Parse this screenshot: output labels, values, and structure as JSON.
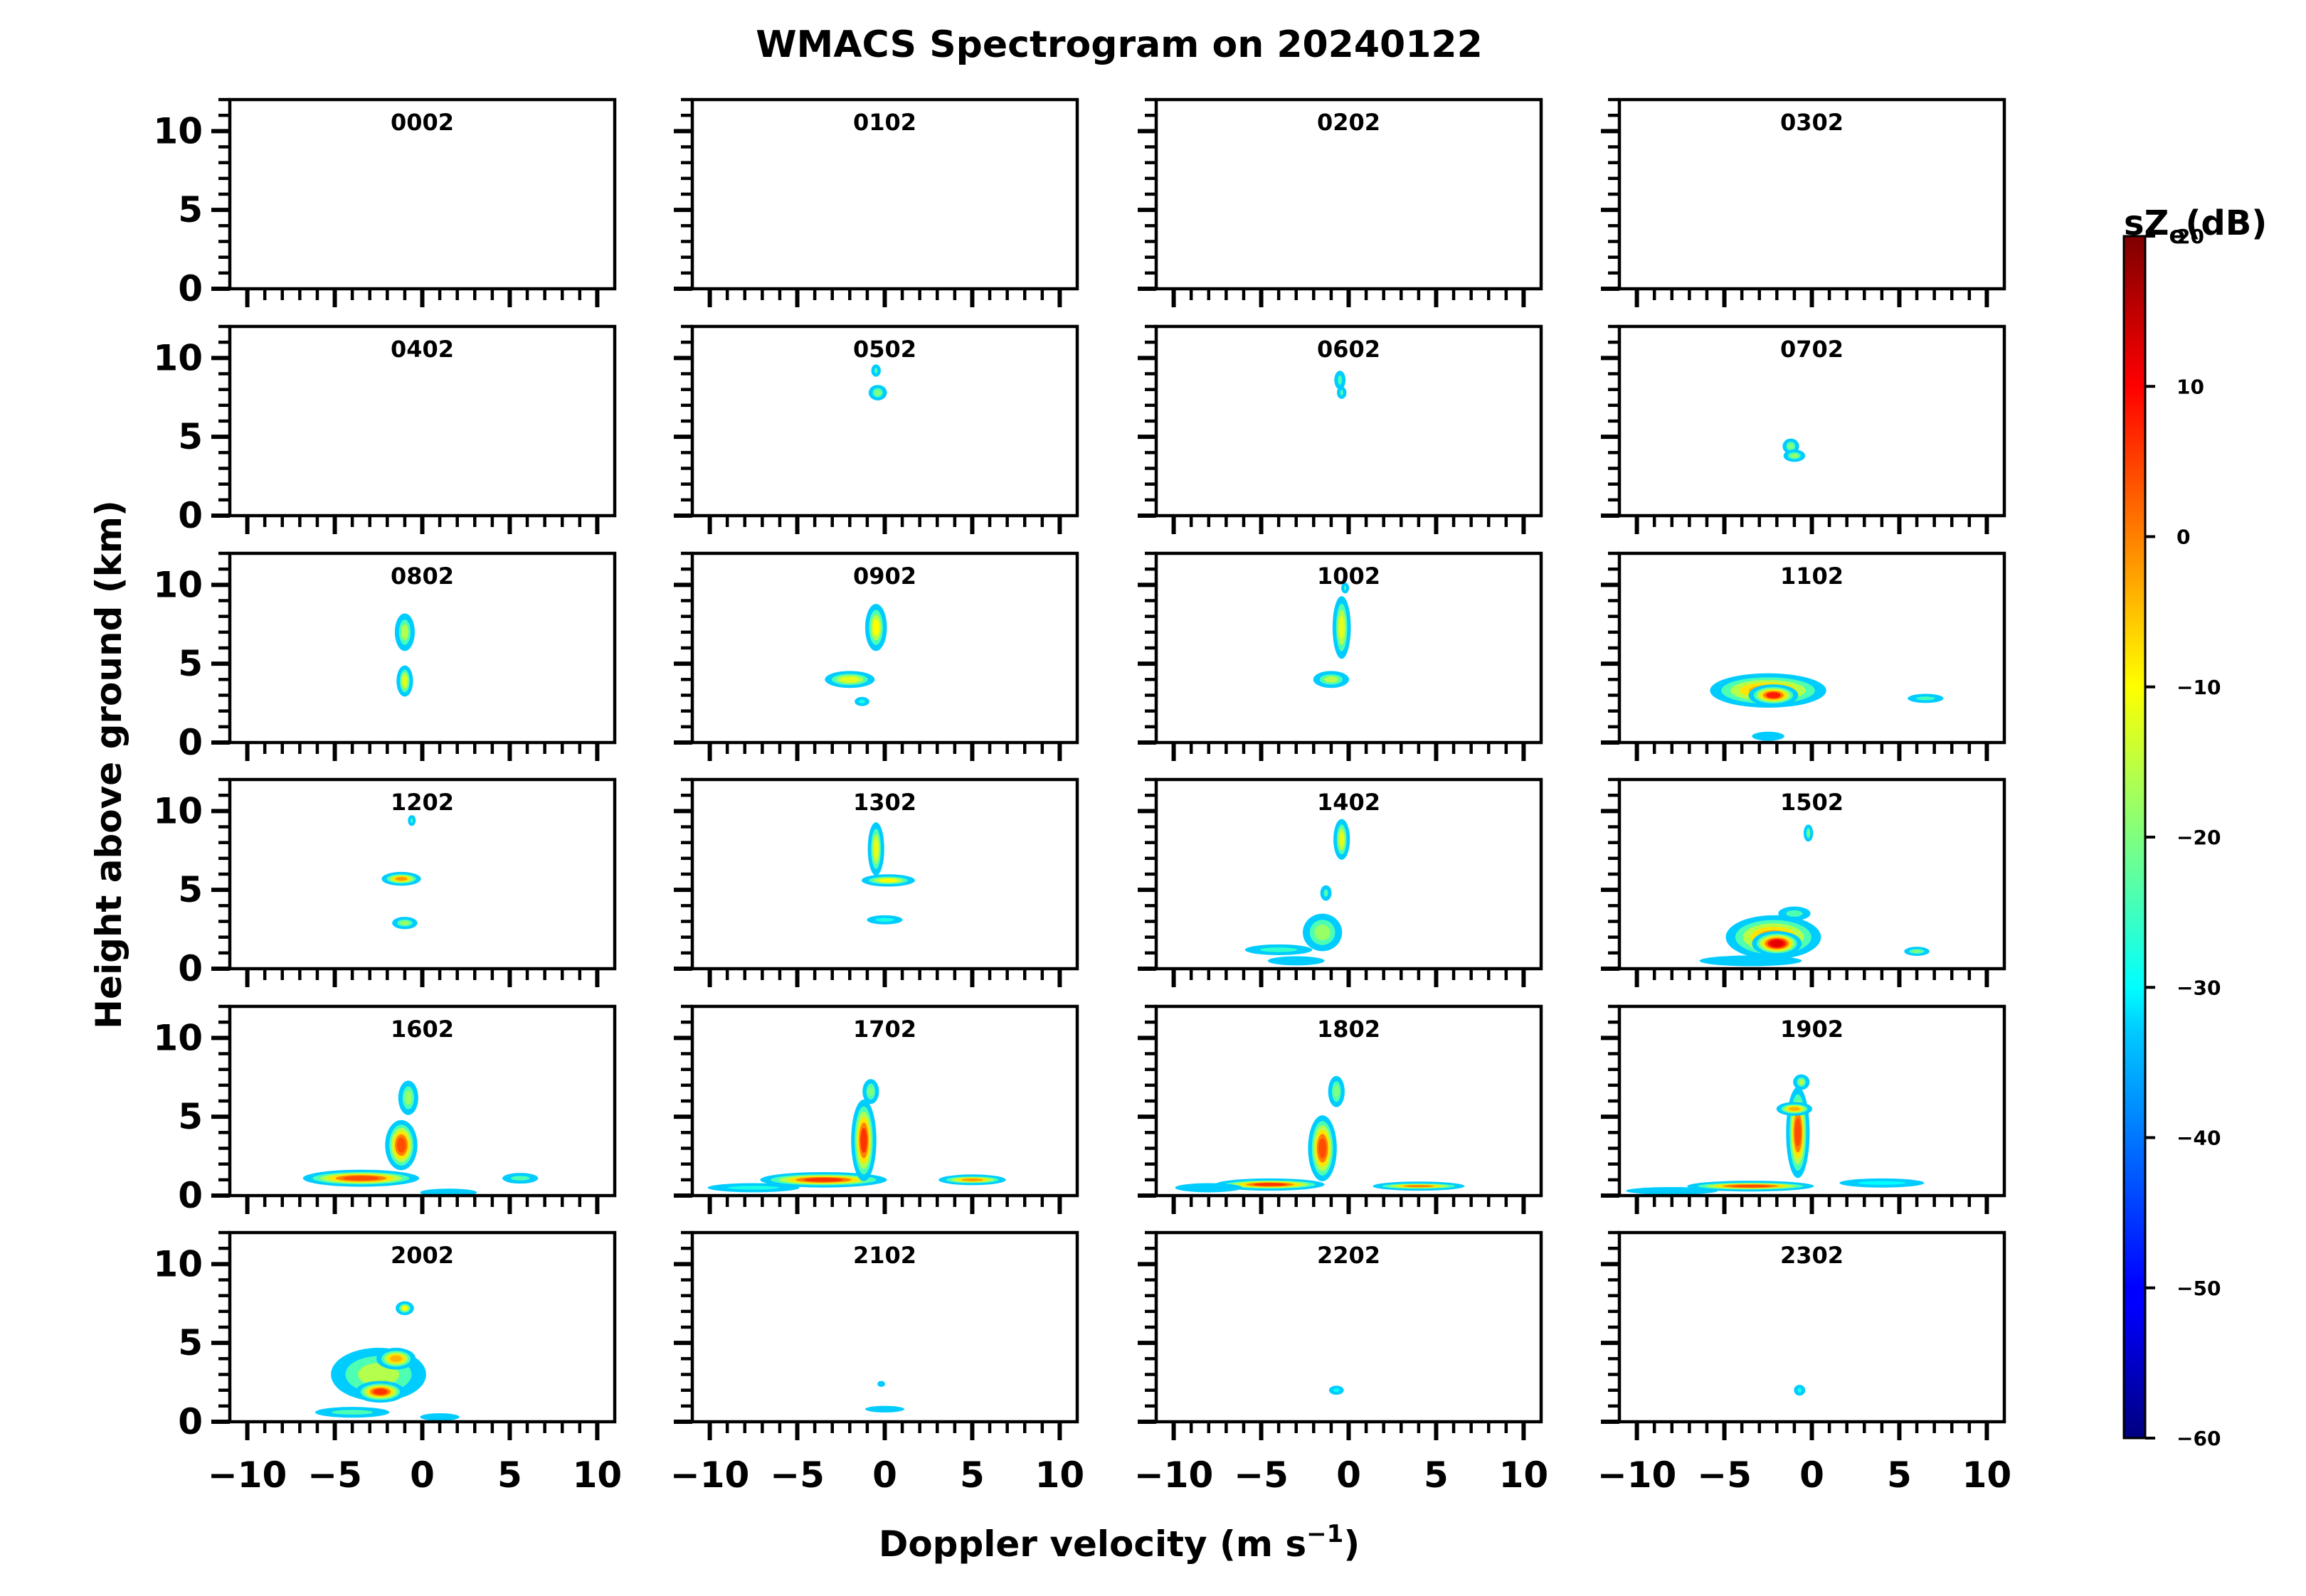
{
  "chart_data": {
    "type": "heatmap",
    "title": "WMACS Spectrogram on 20240122",
    "xlabel_main": "Doppler velocity (m s",
    "xlabel_sup": "−1",
    "xlabel_close": ")",
    "ylabel": "Height above ground (km)",
    "xlim": [
      -11,
      11
    ],
    "ylim": [
      0,
      12
    ],
    "x_ticks": [
      -10,
      -5,
      0,
      5,
      10
    ],
    "x_tick_labels": [
      "−10",
      "−5",
      "0",
      "5",
      "10"
    ],
    "y_ticks": [
      0,
      5,
      10
    ],
    "y_tick_labels": [
      "0",
      "5",
      "10"
    ],
    "colorbar": {
      "label": "sZ",
      "label_sub": "e",
      "label_unit": "(dB)",
      "range": [
        -60,
        20
      ],
      "ticks": [
        -60,
        -50,
        -40,
        -30,
        -20,
        -10,
        0,
        10,
        20
      ],
      "tick_labels": [
        "−60",
        "−50",
        "−40",
        "−30",
        "−20",
        "−10",
        "0",
        "10",
        "20"
      ],
      "colormap": "jet"
    },
    "panels": [
      {
        "time": "0002",
        "blobs": []
      },
      {
        "time": "0102",
        "blobs": []
      },
      {
        "time": "0202",
        "blobs": []
      },
      {
        "time": "0302",
        "blobs": []
      },
      {
        "time": "0402",
        "blobs": []
      },
      {
        "time": "0502",
        "blobs": [
          [
            -0.5,
            9.2,
            0.15,
            0.3,
            -22
          ],
          [
            -0.4,
            7.8,
            0.4,
            0.4,
            -20
          ]
        ]
      },
      {
        "time": "0602",
        "blobs": [
          [
            -0.5,
            8.6,
            0.2,
            0.5,
            -22
          ],
          [
            -0.4,
            7.8,
            0.15,
            0.3,
            -22
          ]
        ]
      },
      {
        "time": "0702",
        "blobs": [
          [
            -1.2,
            4.4,
            0.35,
            0.4,
            -20
          ],
          [
            -1.0,
            3.8,
            0.5,
            0.3,
            -18
          ]
        ]
      },
      {
        "time": "0802",
        "blobs": [
          [
            -1.0,
            7.0,
            0.45,
            1.1,
            -14
          ],
          [
            -1.0,
            3.9,
            0.35,
            0.9,
            -12
          ]
        ]
      },
      {
        "time": "0902",
        "blobs": [
          [
            -0.5,
            7.3,
            0.5,
            1.4,
            -10
          ],
          [
            -2.0,
            4.0,
            1.3,
            0.45,
            -12
          ],
          [
            -1.3,
            2.6,
            0.3,
            0.2,
            -28
          ]
        ]
      },
      {
        "time": "1002",
        "blobs": [
          [
            -0.4,
            7.3,
            0.4,
            1.9,
            -12
          ],
          [
            -1.0,
            4.0,
            0.9,
            0.45,
            -14
          ],
          [
            -0.2,
            9.8,
            0.1,
            0.25,
            -25
          ]
        ]
      },
      {
        "time": "1102",
        "blobs": [
          [
            -2.5,
            3.3,
            3.2,
            1.0,
            -4
          ],
          [
            -2.2,
            3.0,
            1.3,
            0.6,
            10
          ],
          [
            6.5,
            2.8,
            0.9,
            0.2,
            -25
          ],
          [
            -2.5,
            0.4,
            0.8,
            0.2,
            -42
          ]
        ]
      },
      {
        "time": "1202",
        "blobs": [
          [
            -1.2,
            5.7,
            1.0,
            0.35,
            -2
          ],
          [
            -1.0,
            2.9,
            0.6,
            0.3,
            -18
          ],
          [
            -0.6,
            9.4,
            0.1,
            0.25,
            -25
          ]
        ]
      },
      {
        "time": "1302",
        "blobs": [
          [
            -0.5,
            7.6,
            0.35,
            1.6,
            -12
          ],
          [
            0.2,
            5.6,
            1.4,
            0.3,
            -10
          ],
          [
            0.0,
            3.1,
            0.9,
            0.2,
            -28
          ]
        ]
      },
      {
        "time": "1402",
        "blobs": [
          [
            -0.4,
            8.2,
            0.35,
            1.2,
            -12
          ],
          [
            -1.5,
            2.3,
            1.0,
            1.1,
            -18
          ],
          [
            -4.0,
            1.2,
            1.8,
            0.25,
            -26
          ],
          [
            -3.0,
            0.5,
            1.5,
            0.2,
            -42
          ],
          [
            -1.3,
            4.8,
            0.2,
            0.4,
            -22
          ]
        ]
      },
      {
        "time": "1502",
        "blobs": [
          [
            -2.2,
            2.0,
            2.6,
            1.3,
            -3
          ],
          [
            -2.0,
            1.6,
            1.3,
            0.7,
            12
          ],
          [
            -3.5,
            0.5,
            2.8,
            0.25,
            -36
          ],
          [
            6.0,
            1.1,
            0.6,
            0.2,
            -20
          ],
          [
            -0.2,
            8.6,
            0.15,
            0.45,
            -20
          ],
          [
            -1.0,
            3.5,
            0.8,
            0.35,
            -24
          ]
        ]
      },
      {
        "time": "1602",
        "blobs": [
          [
            -3.5,
            1.1,
            3.2,
            0.45,
            4
          ],
          [
            -1.2,
            3.2,
            0.8,
            1.5,
            4
          ],
          [
            -0.8,
            6.2,
            0.45,
            1.0,
            -18
          ],
          [
            5.6,
            1.1,
            0.9,
            0.25,
            -22
          ],
          [
            1.5,
            0.2,
            1.5,
            0.15,
            -38
          ]
        ]
      },
      {
        "time": "1702",
        "blobs": [
          [
            -3.5,
            1.0,
            3.5,
            0.4,
            6
          ],
          [
            -1.2,
            3.5,
            0.6,
            2.5,
            6
          ],
          [
            5.0,
            1.0,
            1.8,
            0.25,
            -2
          ],
          [
            -7.5,
            0.5,
            2.5,
            0.2,
            -28
          ],
          [
            -0.8,
            6.6,
            0.35,
            0.7,
            -20
          ]
        ]
      },
      {
        "time": "1802",
        "blobs": [
          [
            -4.5,
            0.7,
            3.0,
            0.3,
            6
          ],
          [
            -1.5,
            3.0,
            0.7,
            2.0,
            4
          ],
          [
            -0.7,
            6.6,
            0.35,
            0.9,
            -20
          ],
          [
            4.0,
            0.6,
            2.5,
            0.2,
            0
          ],
          [
            -8.0,
            0.5,
            1.8,
            0.2,
            -36
          ]
        ]
      },
      {
        "time": "1902",
        "blobs": [
          [
            -3.5,
            0.6,
            3.5,
            0.25,
            4
          ],
          [
            -0.8,
            4.0,
            0.55,
            2.8,
            4
          ],
          [
            -1.0,
            5.5,
            0.9,
            0.35,
            -4
          ],
          [
            -0.6,
            7.2,
            0.35,
            0.4,
            -14
          ],
          [
            4.0,
            0.8,
            2.3,
            0.2,
            -30
          ],
          [
            -8.0,
            0.3,
            2.5,
            0.15,
            -40
          ]
        ]
      },
      {
        "time": "2002",
        "blobs": [
          [
            -2.5,
            3.0,
            2.6,
            1.6,
            -14
          ],
          [
            -2.4,
            1.9,
            1.3,
            0.6,
            6
          ],
          [
            -1.5,
            4.0,
            1.0,
            0.6,
            -4
          ],
          [
            -4.0,
            0.6,
            2.0,
            0.25,
            -22
          ],
          [
            -1.0,
            7.2,
            0.4,
            0.35,
            -10
          ],
          [
            1.0,
            0.3,
            1.0,
            0.15,
            -40
          ]
        ]
      },
      {
        "time": "2102",
        "blobs": [
          [
            0.0,
            0.8,
            1.0,
            0.12,
            -38
          ],
          [
            -0.2,
            2.4,
            0.1,
            0.1,
            -35
          ]
        ]
      },
      {
        "time": "2202",
        "blobs": [
          [
            -0.7,
            2.0,
            0.3,
            0.2,
            -30
          ]
        ]
      },
      {
        "time": "2302",
        "blobs": [
          [
            -0.7,
            2.0,
            0.2,
            0.25,
            -28
          ]
        ]
      }
    ]
  }
}
